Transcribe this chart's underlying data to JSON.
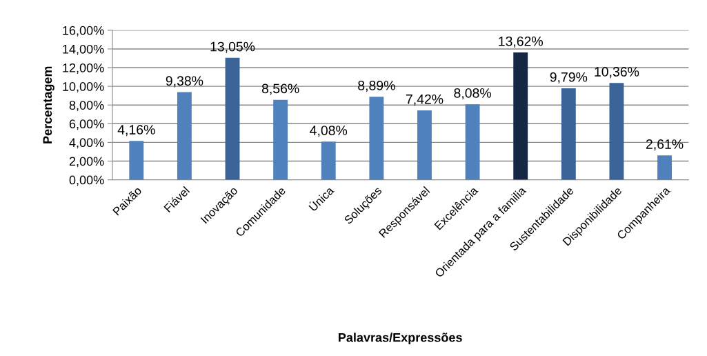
{
  "chart_data": {
    "type": "bar",
    "xlabel": "Palavras/Expressões",
    "ylabel": "Percentagem",
    "categories": [
      "Paixão",
      "Fiável",
      "Inovação",
      "Comunidade",
      "Única",
      "Soluções",
      "Responsável",
      "Excelência",
      "Orientada para a familia",
      "Sustentabilidade",
      "Disponibilidade",
      "Companheira"
    ],
    "values": [
      4.16,
      9.38,
      13.05,
      8.56,
      4.08,
      8.89,
      7.42,
      8.08,
      13.62,
      9.79,
      10.36,
      2.61
    ],
    "colors": [
      "#4f81bd",
      "#4f81bd",
      "#3a6397",
      "#4f81bd",
      "#4f81bd",
      "#4f81bd",
      "#4f81bd",
      "#4f81bd",
      "#142845",
      "#3a6397",
      "#3a6397",
      "#4f81bd"
    ],
    "value_labels": [
      "4,16%",
      "9,38%",
      "13,05%",
      "8,56%",
      "4,08%",
      "8,89%",
      "7,42%",
      "8,08%",
      "13,62%",
      "9,79%",
      "10,36%",
      "2,61%"
    ],
    "ylim": [
      0,
      16
    ],
    "yticks": [
      {
        "value": 0,
        "label": "0,00%"
      },
      {
        "value": 2,
        "label": "2,00%"
      },
      {
        "value": 4,
        "label": "4,00%"
      },
      {
        "value": 6,
        "label": "6,00%"
      },
      {
        "value": 8,
        "label": "8,00%"
      },
      {
        "value": 10,
        "label": "10,00%"
      },
      {
        "value": 12,
        "label": "12,00%"
      },
      {
        "value": 14,
        "label": "14,00%"
      },
      {
        "value": 16,
        "label": "16,00%"
      }
    ],
    "grid": "y"
  }
}
